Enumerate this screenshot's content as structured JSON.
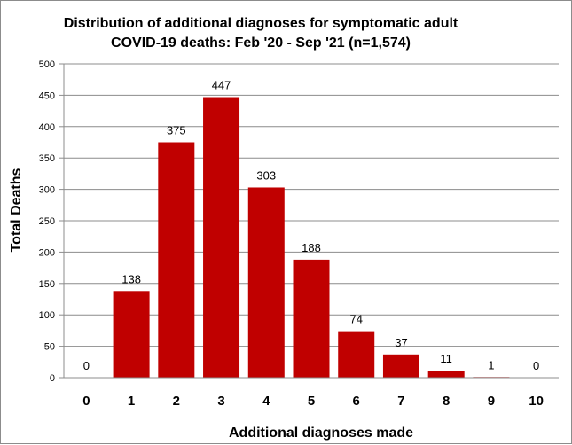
{
  "chart_data": {
    "type": "bar",
    "title_lines": [
      "Distribution of additional diagnoses for symptomatic adult",
      "COVID-19 deaths: Feb '20 - Sep '21 (n=1,574)"
    ],
    "xlabel": "Additional diagnoses made",
    "ylabel": "Total Deaths",
    "categories": [
      "0",
      "1",
      "2",
      "3",
      "4",
      "5",
      "6",
      "7",
      "8",
      "9",
      "10"
    ],
    "values": [
      0,
      138,
      375,
      447,
      303,
      188,
      74,
      37,
      11,
      1,
      0
    ],
    "ylim": [
      0,
      500
    ],
    "yticks": [
      0,
      50,
      100,
      150,
      200,
      250,
      300,
      350,
      400,
      450,
      500
    ],
    "grid": true,
    "legend": "none",
    "colors": {
      "bar": "#c00000",
      "grid": "#8c8c8c",
      "axis": "#8c8c8c"
    }
  }
}
